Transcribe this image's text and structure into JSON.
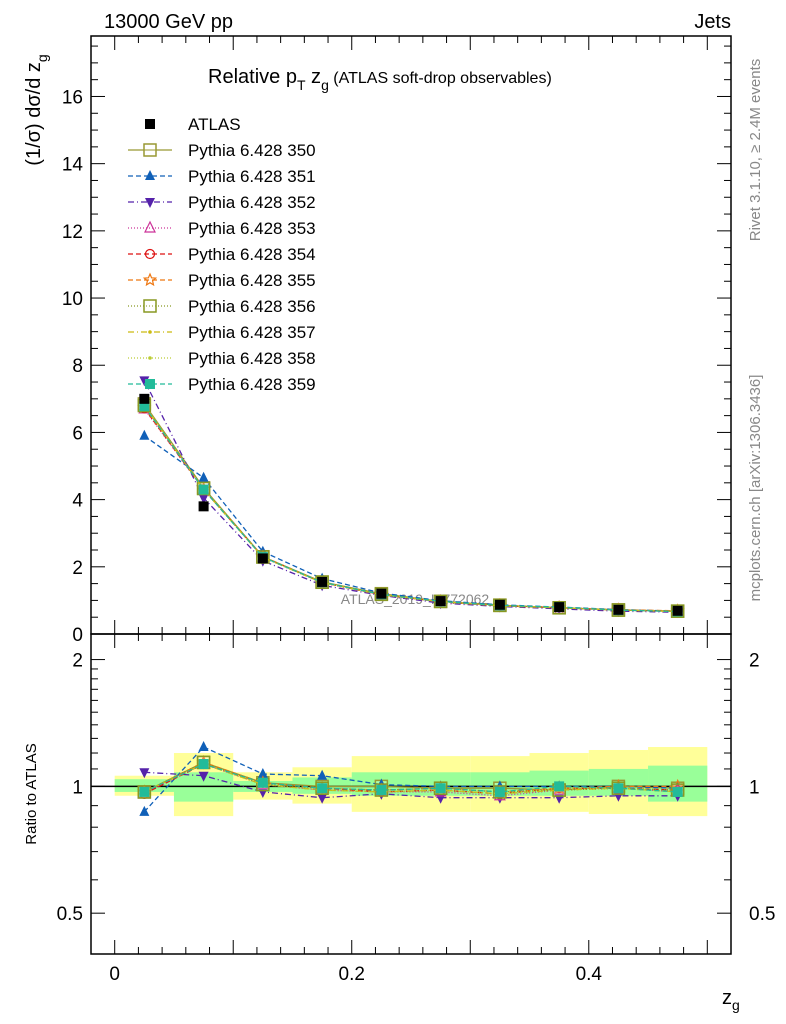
{
  "header": {
    "left": "13000 GeV pp",
    "right": "Jets"
  },
  "side_labels": {
    "rivet": "Rivet 3.1.10, ≥ 2.4M events",
    "mcplots": "mcplots.cern.ch [arXiv:1306.3436]"
  },
  "colors": {
    "data": "#000000",
    "green_band": "#99ff99",
    "yellow_band": "#ffff99",
    "text_gray": "#888888"
  },
  "chart_data": [
    {
      "type": "line",
      "title_main": "Relative p",
      "title_sub_T": "T",
      "title_mid": " z",
      "title_sub_g": "g",
      "title_tail": " (ATLAS soft-drop observables)",
      "ylabel": "(1/σ) dσ/d z",
      "ylabel_sub": "g",
      "watermark": "ATLAS_2019_I1772062",
      "xlim": [
        -0.02,
        0.52
      ],
      "ylim": [
        0,
        17.8
      ],
      "y_ticks": [
        "0",
        "2",
        "4",
        "6",
        "8",
        "10",
        "12",
        "14",
        "16"
      ],
      "x": [
        0.025,
        0.075,
        0.125,
        0.175,
        0.225,
        0.275,
        0.325,
        0.375,
        0.425,
        0.475
      ],
      "data": {
        "name": "ATLAS",
        "values": [
          7.0,
          3.8,
          2.25,
          1.55,
          1.2,
          0.98,
          0.87,
          0.8,
          0.72,
          0.69
        ]
      },
      "series": [
        {
          "name": "Pythia 6.428 350",
          "color": "#999933",
          "dash": "",
          "marker": "square-open",
          "values": [
            6.85,
            4.35,
            2.3,
            1.55,
            1.2,
            0.97,
            0.86,
            0.78,
            0.72,
            0.68
          ]
        },
        {
          "name": "Pythia 6.428 351",
          "color": "#1060b8",
          "dash": "5,3",
          "marker": "triangle-up",
          "values": [
            5.9,
            4.65,
            2.45,
            1.65,
            1.22,
            0.99,
            0.87,
            0.8,
            0.73,
            0.68
          ]
        },
        {
          "name": "Pythia 6.428 352",
          "color": "#5522aa",
          "dash": "6,3,1,3",
          "marker": "triangle-down",
          "values": [
            7.55,
            4.05,
            2.18,
            1.45,
            1.15,
            0.92,
            0.82,
            0.75,
            0.68,
            0.65
          ]
        },
        {
          "name": "Pythia 6.428 353",
          "color": "#cc3399",
          "dash": "1,2",
          "marker": "triangle-up-open",
          "values": [
            6.7,
            4.3,
            2.28,
            1.52,
            1.16,
            0.96,
            0.83,
            0.78,
            0.71,
            0.67
          ]
        },
        {
          "name": "Pythia 6.428 354",
          "color": "#dd1111",
          "dash": "5,3",
          "marker": "circle-open",
          "values": [
            6.72,
            4.3,
            2.3,
            1.53,
            1.17,
            0.96,
            0.84,
            0.79,
            0.71,
            0.68
          ]
        },
        {
          "name": "Pythia 6.428 355",
          "color": "#ee7711",
          "dash": "5,3",
          "marker": "star-open",
          "values": [
            6.75,
            4.32,
            2.3,
            1.54,
            1.18,
            0.97,
            0.85,
            0.79,
            0.72,
            0.69
          ]
        },
        {
          "name": "Pythia 6.428 356",
          "color": "#889922",
          "dash": "1,2",
          "marker": "square-open",
          "values": [
            6.8,
            4.33,
            2.29,
            1.54,
            1.18,
            0.97,
            0.85,
            0.78,
            0.71,
            0.68
          ]
        },
        {
          "name": "Pythia 6.428 357",
          "color": "#ccbb11",
          "dash": "6,3,1,3",
          "marker": "dot",
          "values": [
            6.8,
            4.3,
            2.28,
            1.53,
            1.17,
            0.96,
            0.84,
            0.78,
            0.71,
            0.67
          ]
        },
        {
          "name": "Pythia 6.428 358",
          "color": "#bbcc33",
          "dash": "1,2",
          "marker": "dot",
          "values": [
            6.82,
            4.31,
            2.28,
            1.53,
            1.17,
            0.96,
            0.84,
            0.79,
            0.71,
            0.67
          ]
        },
        {
          "name": "Pythia 6.428 359",
          "color": "#22bb99",
          "dash": "5,3",
          "marker": "square",
          "values": [
            6.78,
            4.3,
            2.29,
            1.54,
            1.18,
            0.97,
            0.85,
            0.8,
            0.71,
            0.67
          ]
        }
      ]
    },
    {
      "type": "line",
      "ylabel": "Ratio to ATLAS",
      "xlabel": "z",
      "xlabel_sub": "g",
      "xlim": [
        -0.02,
        0.52
      ],
      "ylim": [
        0.4,
        2.3
      ],
      "y_ticks": [
        "0.5",
        "1",
        "2"
      ],
      "x_ticks": [
        "0",
        "0.2",
        "0.4"
      ],
      "bins": [
        [
          0.0,
          0.05
        ],
        [
          0.05,
          0.1
        ],
        [
          0.1,
          0.15
        ],
        [
          0.15,
          0.2
        ],
        [
          0.2,
          0.25
        ],
        [
          0.25,
          0.3
        ],
        [
          0.3,
          0.35
        ],
        [
          0.35,
          0.4
        ],
        [
          0.4,
          0.45
        ],
        [
          0.45,
          0.5
        ]
      ],
      "stat_band": [
        [
          0.97,
          1.04
        ],
        [
          0.92,
          1.08
        ],
        [
          0.97,
          1.03
        ],
        [
          0.96,
          1.05
        ],
        [
          0.95,
          1.08
        ],
        [
          0.95,
          1.08
        ],
        [
          0.95,
          1.08
        ],
        [
          0.95,
          1.09
        ],
        [
          0.95,
          1.1
        ],
        [
          0.92,
          1.12
        ]
      ],
      "syst_band": [
        [
          0.95,
          1.06
        ],
        [
          0.85,
          1.2
        ],
        [
          0.93,
          1.08
        ],
        [
          0.91,
          1.11
        ],
        [
          0.87,
          1.18
        ],
        [
          0.87,
          1.18
        ],
        [
          0.87,
          1.18
        ],
        [
          0.87,
          1.2
        ],
        [
          0.86,
          1.22
        ],
        [
          0.85,
          1.24
        ]
      ],
      "ratios": [
        [
          0.97,
          1.14,
          1.02,
          1.0,
          1.0,
          0.99,
          0.99,
          0.98,
          1.0,
          0.99
        ],
        [
          0.87,
          1.24,
          1.07,
          1.06,
          1.01,
          1.0,
          1.0,
          1.0,
          1.0,
          0.99
        ],
        [
          1.08,
          1.06,
          0.97,
          0.94,
          0.96,
          0.94,
          0.94,
          0.94,
          0.95,
          0.95
        ],
        [
          0.96,
          1.13,
          1.01,
          0.98,
          0.97,
          0.97,
          0.95,
          0.98,
          0.99,
          0.97
        ],
        [
          0.96,
          1.13,
          1.02,
          0.99,
          0.97,
          0.98,
          0.96,
          0.99,
          0.99,
          0.98
        ],
        [
          0.97,
          1.14,
          1.02,
          0.99,
          0.98,
          0.99,
          0.97,
          0.99,
          1.0,
          1.0
        ],
        [
          0.97,
          1.14,
          1.01,
          0.99,
          0.98,
          0.99,
          0.97,
          0.98,
          0.99,
          0.98
        ],
        [
          0.97,
          1.13,
          1.01,
          0.98,
          0.97,
          0.98,
          0.96,
          0.98,
          0.99,
          0.97
        ],
        [
          0.97,
          1.13,
          1.01,
          0.98,
          0.97,
          0.98,
          0.96,
          0.99,
          0.99,
          0.97
        ],
        [
          0.97,
          1.13,
          1.02,
          0.99,
          0.98,
          0.99,
          0.97,
          1.0,
          0.99,
          0.97
        ]
      ]
    }
  ]
}
